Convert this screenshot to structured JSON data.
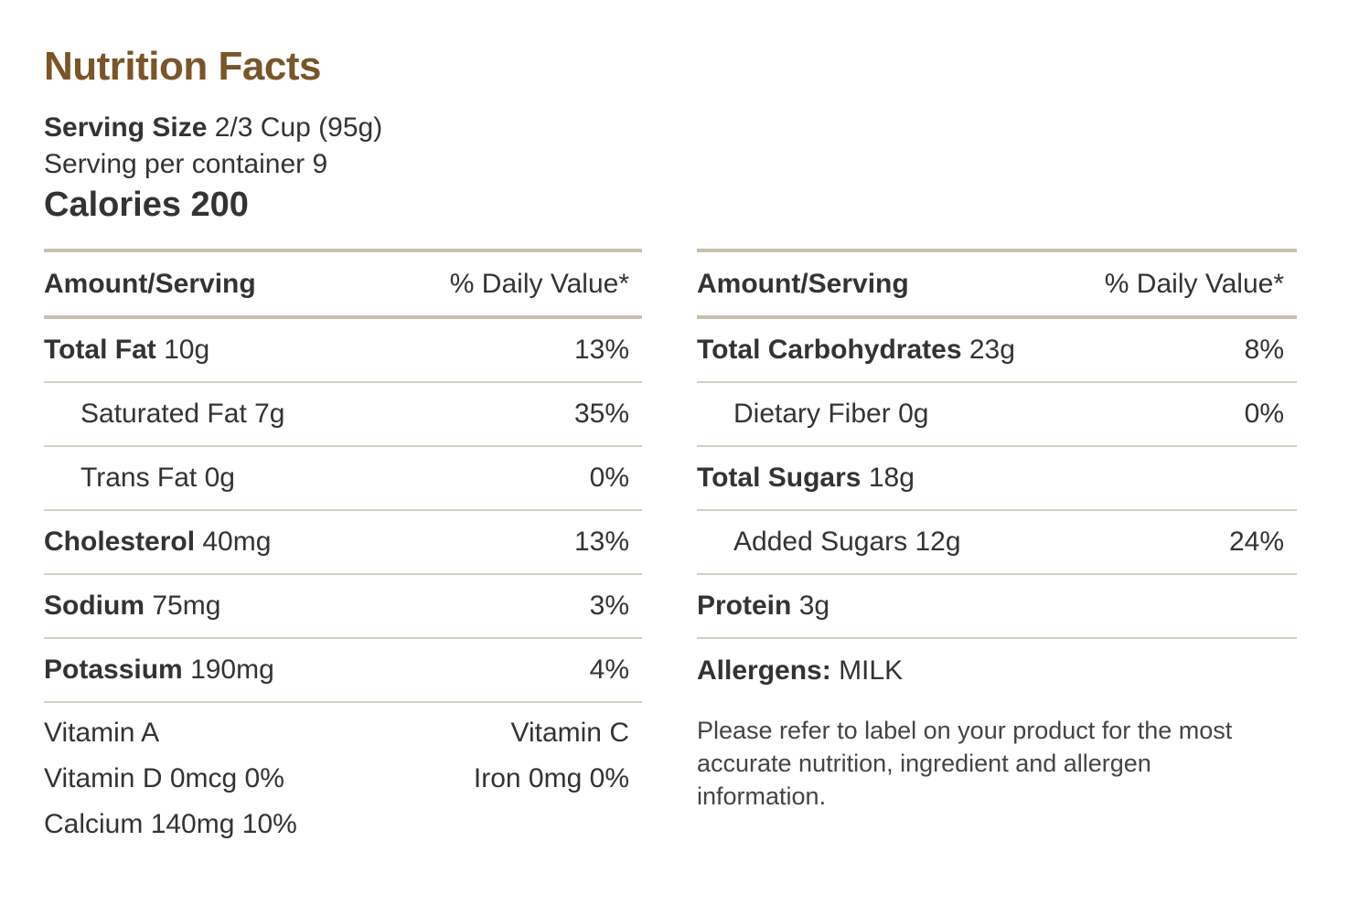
{
  "title": "Nutrition Facts",
  "serving": {
    "size_label": "Serving Size",
    "size_value": "2/3 Cup (95g)",
    "per_container": "Serving per container 9"
  },
  "calories": "Calories 200",
  "left": {
    "header": {
      "amount": "Amount/Serving",
      "dv": "% Daily Value*"
    },
    "rows": [
      {
        "label": "Total Fat",
        "amount": "10g",
        "pct": "13%",
        "bold": true
      },
      {
        "label": "Saturated Fat",
        "amount": "7g",
        "pct": "35%",
        "bold": false
      },
      {
        "label": "Trans Fat",
        "amount": "0g",
        "pct": "0%",
        "bold": false
      },
      {
        "label": "Cholesterol",
        "amount": "40mg",
        "pct": "13%",
        "bold": true
      },
      {
        "label": "Sodium",
        "amount": "75mg",
        "pct": "3%",
        "bold": true
      },
      {
        "label": "Potassium",
        "amount": "190mg",
        "pct": "4%",
        "bold": true
      }
    ],
    "vitamins_left": [
      "Vitamin A",
      "Vitamin D 0mcg 0%",
      "Calcium 140mg 10%"
    ],
    "vitamins_right": [
      "Vitamin C",
      "Iron 0mg 0%"
    ]
  },
  "right": {
    "header": {
      "amount": "Amount/Serving",
      "dv": "% Daily Value*"
    },
    "rows": [
      {
        "label": "Total Carbohydrates",
        "amount": "23g",
        "pct": "8%",
        "bold": true
      },
      {
        "label": "Dietary Fiber",
        "amount": "0g",
        "pct": "0%",
        "bold": false
      },
      {
        "label": "Total Sugars",
        "amount": "18g",
        "pct": "",
        "bold": true
      },
      {
        "label": "Added Sugars",
        "amount": "12g",
        "pct": "24%",
        "bold": false
      },
      {
        "label": "Protein",
        "amount": "3g",
        "pct": "",
        "bold": true
      }
    ],
    "allergens_label": "Allergens:",
    "allergens_value": "MILK",
    "note": "Please refer to label on your product for the most accurate nutrition, ingredient and allergen information."
  },
  "colors": {
    "title": "#7a5527",
    "text": "#333333",
    "rule": "#c8bfb0"
  }
}
